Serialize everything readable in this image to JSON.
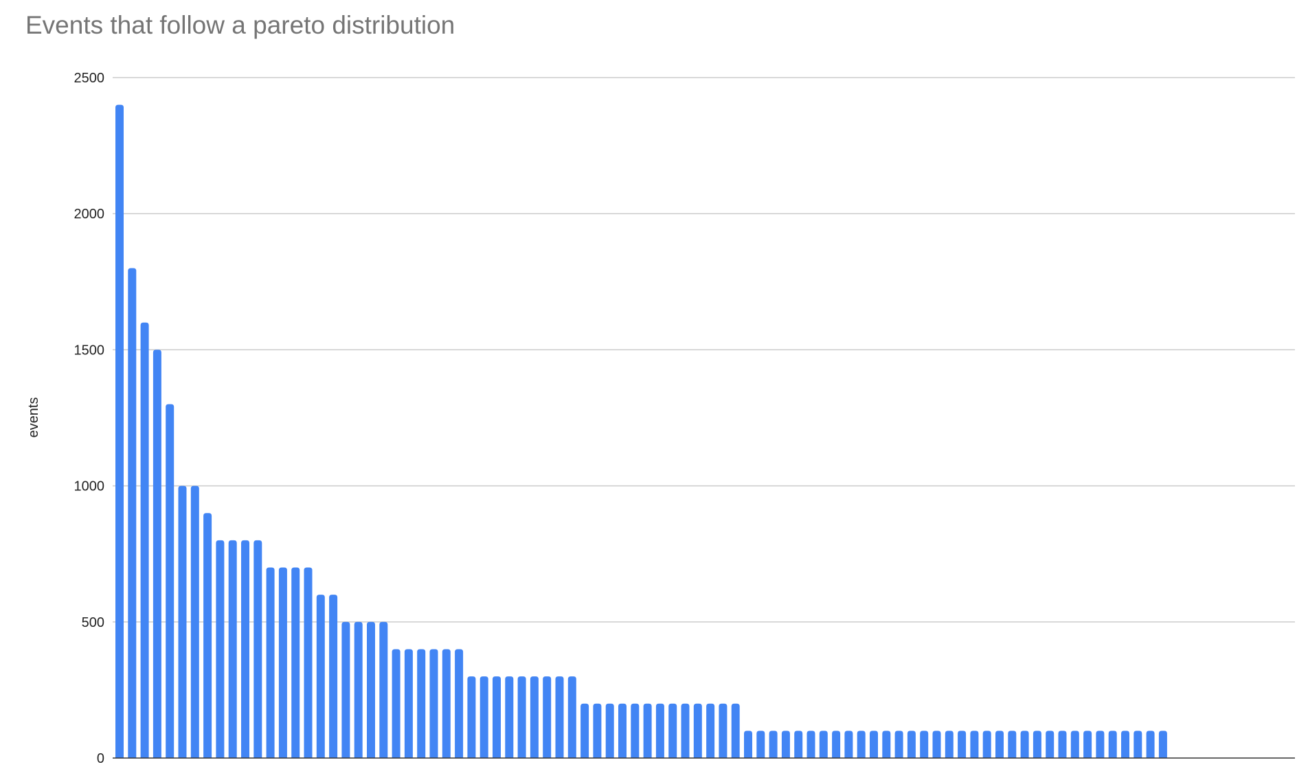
{
  "chart_data": {
    "type": "bar",
    "title": "Events that follow a pareto distribution",
    "xlabel": "",
    "ylabel": "events",
    "ylim": [
      0,
      2500
    ],
    "yticks": [
      "0",
      "500",
      "1000",
      "1500",
      "2000",
      "2500"
    ],
    "grid": true,
    "legend": "none",
    "bar_color": "#4285f4",
    "values": [
      2400,
      1800,
      1600,
      1500,
      1300,
      1000,
      1000,
      900,
      800,
      800,
      800,
      800,
      700,
      700,
      700,
      700,
      600,
      600,
      500,
      500,
      500,
      500,
      400,
      400,
      400,
      400,
      400,
      400,
      300,
      300,
      300,
      300,
      300,
      300,
      300,
      300,
      300,
      200,
      200,
      200,
      200,
      200,
      200,
      200,
      200,
      200,
      200,
      200,
      200,
      200,
      100,
      100,
      100,
      100,
      100,
      100,
      100,
      100,
      100,
      100,
      100,
      100,
      100,
      100,
      100,
      100,
      100,
      100,
      100,
      100,
      100,
      100,
      100,
      100,
      100,
      100,
      100,
      100,
      100,
      100,
      100,
      100,
      100,
      100
    ]
  }
}
